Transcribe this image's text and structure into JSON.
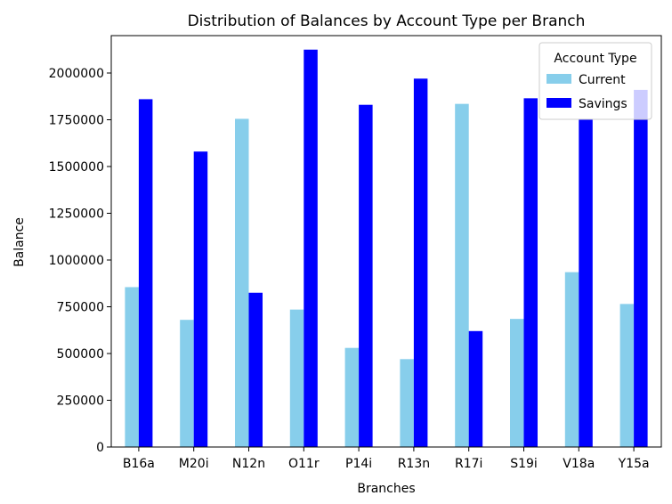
{
  "chart_data": {
    "type": "bar",
    "title": "Distribution of Balances by Account Type per Branch",
    "xlabel": "Branches",
    "ylabel": "Balance",
    "categories": [
      "B16a",
      "M20i",
      "N12n",
      "O11r",
      "P14i",
      "R13n",
      "R17i",
      "S19i",
      "V18a",
      "Y15a"
    ],
    "ylim": [
      0,
      2200000
    ],
    "yticks": [
      0,
      250000,
      500000,
      750000,
      1000000,
      1250000,
      1500000,
      1750000,
      2000000
    ],
    "grid": false,
    "legend": {
      "title": "Account Type",
      "placement": "top-right"
    },
    "series": [
      {
        "name": "Current",
        "color": "#87ceeb",
        "values": [
          855000,
          680000,
          1755000,
          735000,
          530000,
          470000,
          1835000,
          685000,
          935000,
          765000
        ]
      },
      {
        "name": "Savings",
        "color": "#0000ff",
        "values": [
          1860000,
          1580000,
          825000,
          2125000,
          1830000,
          1970000,
          620000,
          1865000,
          1755000,
          1910000
        ]
      }
    ]
  }
}
